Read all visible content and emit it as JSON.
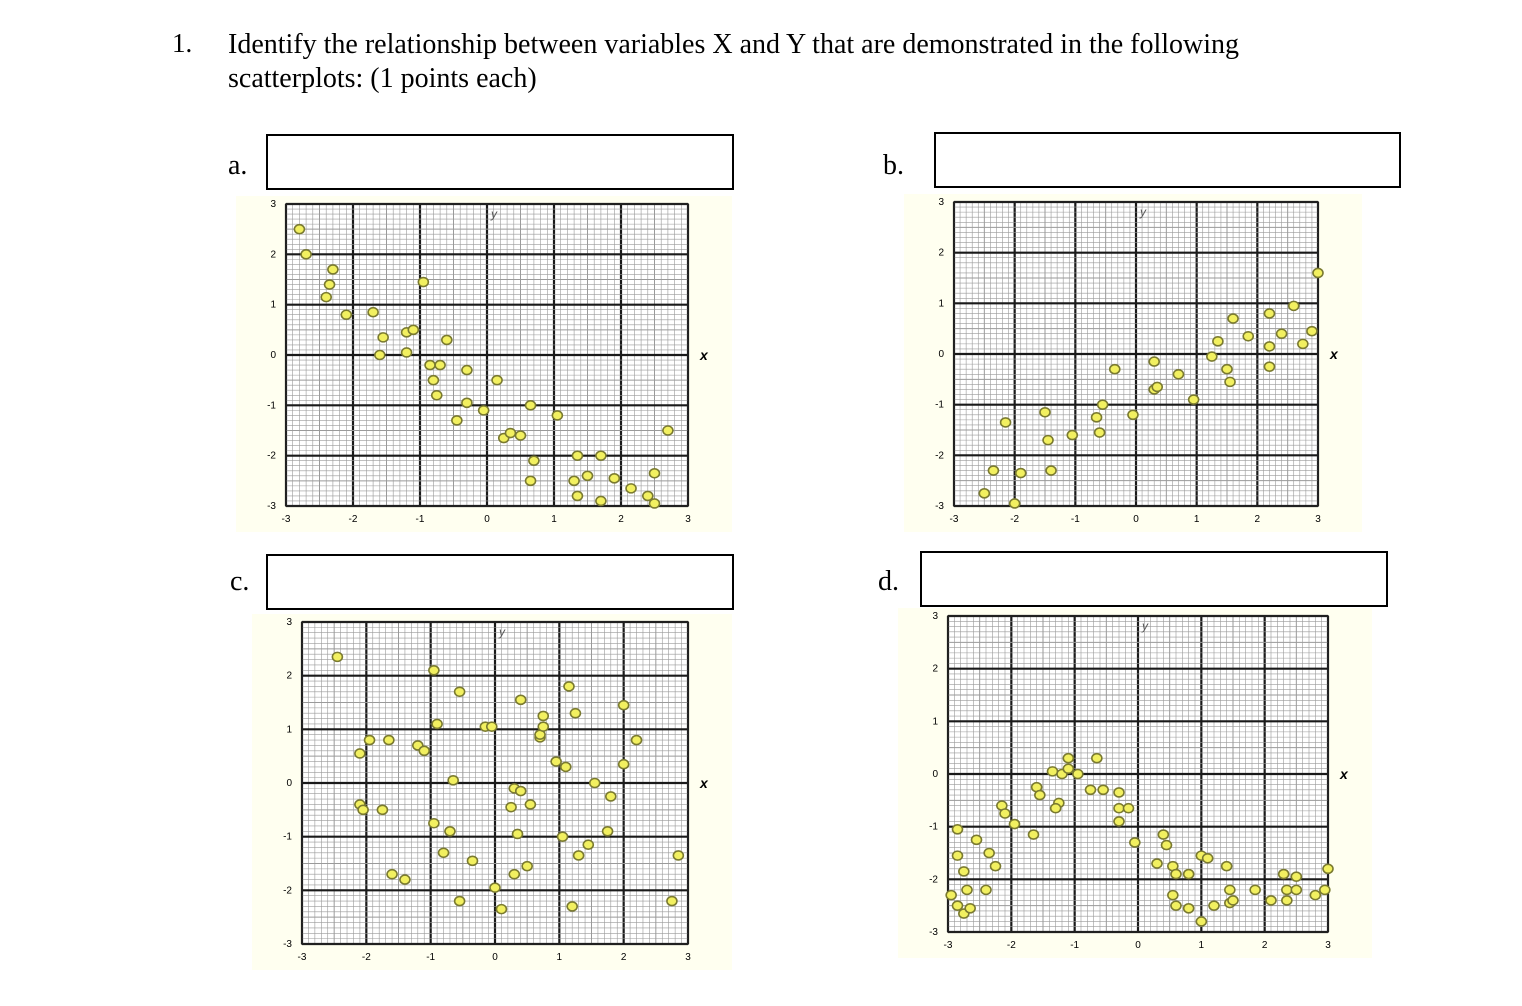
{
  "question": {
    "number": "1.",
    "text": "Identify the relationship between variables X and Y that are demonstrated in the following scatterplots: (1 points each)"
  },
  "plots": [
    {
      "label": "a.",
      "answer": ""
    },
    {
      "label": "b.",
      "answer": ""
    },
    {
      "label": "c.",
      "answer": ""
    },
    {
      "label": "d.",
      "answer": ""
    }
  ],
  "colors": {
    "point_fill": "#f2f060",
    "point_stroke": "#7a7a30",
    "grid_major": "#1a1a1a",
    "grid_minor": "#9a9a9a",
    "plot_bg": "#fffff0"
  },
  "chart_data": [
    {
      "type": "scatter",
      "xlabel": "x",
      "ylabel": "y",
      "xlim": [
        -3,
        3
      ],
      "ylim": [
        -3,
        3
      ],
      "xticks": [
        "-3",
        "-2",
        "-1",
        "0",
        "1",
        "2",
        "3"
      ],
      "yticks": [
        "3",
        "2",
        "1",
        "0",
        "-1",
        "-2",
        "-3"
      ],
      "grid": true,
      "points": [
        [
          -2.8,
          2.5
        ],
        [
          -2.7,
          2.0
        ],
        [
          -2.3,
          1.7
        ],
        [
          -2.35,
          1.4
        ],
        [
          -2.4,
          1.15
        ],
        [
          -2.1,
          0.8
        ],
        [
          -1.7,
          0.85
        ],
        [
          -1.55,
          0.35
        ],
        [
          -1.6,
          0.0
        ],
        [
          -1.2,
          0.45
        ],
        [
          -1.1,
          0.5
        ],
        [
          -0.95,
          1.45
        ],
        [
          -1.2,
          0.05
        ],
        [
          -0.85,
          -0.2
        ],
        [
          -0.7,
          -0.2
        ],
        [
          -0.8,
          -0.5
        ],
        [
          -0.75,
          -0.8
        ],
        [
          -0.6,
          0.3
        ],
        [
          -0.3,
          -0.3
        ],
        [
          -0.3,
          -0.95
        ],
        [
          -0.45,
          -1.3
        ],
        [
          0.15,
          -0.5
        ],
        [
          -0.05,
          -1.1
        ],
        [
          0.25,
          -1.65
        ],
        [
          0.35,
          -1.55
        ],
        [
          0.5,
          -1.6
        ],
        [
          0.65,
          -1.0
        ],
        [
          0.7,
          -2.1
        ],
        [
          0.65,
          -2.5
        ],
        [
          1.05,
          -1.2
        ],
        [
          1.3,
          -2.5
        ],
        [
          1.35,
          -2.8
        ],
        [
          1.5,
          -2.4
        ],
        [
          1.35,
          -2.0
        ],
        [
          1.7,
          -2.9
        ],
        [
          1.7,
          -2.0
        ],
        [
          1.9,
          -2.45
        ],
        [
          2.15,
          -2.65
        ],
        [
          2.4,
          -2.8
        ],
        [
          2.5,
          -2.95
        ],
        [
          2.5,
          -2.35
        ],
        [
          2.7,
          -1.5
        ]
      ]
    },
    {
      "type": "scatter",
      "xlabel": "x",
      "ylabel": "y",
      "xlim": [
        -3,
        3
      ],
      "ylim": [
        -3,
        3
      ],
      "xticks": [
        "-3",
        "-2",
        "-1",
        "0",
        "1",
        "2",
        "3"
      ],
      "yticks": [
        "3",
        "2",
        "1",
        "0",
        "-1",
        "-2",
        "-3"
      ],
      "grid": true,
      "points": [
        [
          -2.5,
          -2.75
        ],
        [
          -2.35,
          -2.3
        ],
        [
          -2.15,
          -1.35
        ],
        [
          -2.0,
          -2.95
        ],
        [
          -1.9,
          -2.35
        ],
        [
          -1.5,
          -1.15
        ],
        [
          -1.45,
          -1.7
        ],
        [
          -1.4,
          -2.3
        ],
        [
          -1.05,
          -1.6
        ],
        [
          -0.65,
          -1.25
        ],
        [
          -0.6,
          -1.55
        ],
        [
          -0.55,
          -1.0
        ],
        [
          -0.35,
          -0.3
        ],
        [
          -0.05,
          -1.2
        ],
        [
          0.3,
          -0.15
        ],
        [
          0.3,
          -0.7
        ],
        [
          0.35,
          -0.65
        ],
        [
          0.7,
          -0.4
        ],
        [
          0.95,
          -0.9
        ],
        [
          1.25,
          -0.05
        ],
        [
          1.35,
          0.25
        ],
        [
          1.5,
          -0.3
        ],
        [
          1.55,
          -0.55
        ],
        [
          1.6,
          0.7
        ],
        [
          1.85,
          0.35
        ],
        [
          2.2,
          0.8
        ],
        [
          2.2,
          0.15
        ],
        [
          2.2,
          -0.25
        ],
        [
          2.4,
          0.4
        ],
        [
          2.6,
          0.95
        ],
        [
          2.75,
          0.2
        ],
        [
          2.9,
          0.45
        ],
        [
          3.0,
          1.6
        ]
      ]
    },
    {
      "type": "scatter",
      "xlabel": "x",
      "ylabel": "y",
      "xlim": [
        -3,
        3
      ],
      "ylim": [
        -3,
        3
      ],
      "xticks": [
        "-3",
        "-2",
        "-1",
        "0",
        "1",
        "2",
        "3"
      ],
      "yticks": [
        "3",
        "2",
        "1",
        "0",
        "-1",
        "-2",
        "-3"
      ],
      "grid": true,
      "points": [
        [
          -2.45,
          2.35
        ],
        [
          -2.1,
          0.55
        ],
        [
          -1.95,
          0.8
        ],
        [
          -1.65,
          0.8
        ],
        [
          -1.2,
          0.7
        ],
        [
          -1.1,
          0.6
        ],
        [
          -0.95,
          2.1
        ],
        [
          -0.9,
          1.1
        ],
        [
          -2.1,
          -0.4
        ],
        [
          -2.05,
          -0.5
        ],
        [
          -1.75,
          -0.5
        ],
        [
          -1.6,
          -1.7
        ],
        [
          -1.4,
          -1.8
        ],
        [
          -0.95,
          -0.75
        ],
        [
          -0.8,
          -1.3
        ],
        [
          -0.7,
          -0.9
        ],
        [
          -0.65,
          0.05
        ],
        [
          -0.55,
          1.7
        ],
        [
          -0.55,
          -2.2
        ],
        [
          -0.35,
          -1.45
        ],
        [
          -0.15,
          1.05
        ],
        [
          -0.05,
          1.05
        ],
        [
          0.0,
          -1.95
        ],
        [
          0.1,
          -2.35
        ],
        [
          0.25,
          -0.45
        ],
        [
          0.3,
          -0.1
        ],
        [
          0.3,
          -1.7
        ],
        [
          0.35,
          -0.95
        ],
        [
          0.4,
          -0.15
        ],
        [
          0.4,
          1.55
        ],
        [
          0.5,
          -1.55
        ],
        [
          0.55,
          -0.4
        ],
        [
          0.7,
          0.85
        ],
        [
          0.7,
          0.9
        ],
        [
          0.75,
          1.05
        ],
        [
          0.75,
          1.25
        ],
        [
          0.95,
          0.4
        ],
        [
          1.05,
          -1.0
        ],
        [
          1.1,
          0.3
        ],
        [
          1.15,
          1.8
        ],
        [
          1.2,
          -2.3
        ],
        [
          1.25,
          1.3
        ],
        [
          1.3,
          -1.35
        ],
        [
          1.45,
          -1.15
        ],
        [
          1.55,
          0.0
        ],
        [
          1.75,
          -0.9
        ],
        [
          1.8,
          -0.25
        ],
        [
          2.0,
          1.45
        ],
        [
          2.0,
          0.35
        ],
        [
          2.2,
          0.8
        ],
        [
          2.75,
          -2.2
        ],
        [
          2.85,
          -1.35
        ]
      ]
    },
    {
      "type": "scatter",
      "xlabel": "x",
      "ylabel": "y",
      "xlim": [
        -3,
        3
      ],
      "ylim": [
        -3,
        3
      ],
      "xticks": [
        "-3",
        "-2",
        "-1",
        "0",
        "1",
        "2",
        "3"
      ],
      "yticks": [
        "3",
        "2",
        "1",
        "0",
        "-1",
        "-2",
        "-3"
      ],
      "grid": true,
      "points": [
        [
          -2.95,
          -2.3
        ],
        [
          -2.85,
          -2.5
        ],
        [
          -2.75,
          -2.65
        ],
        [
          -2.65,
          -2.55
        ],
        [
          -2.7,
          -2.2
        ],
        [
          -2.75,
          -1.85
        ],
        [
          -2.85,
          -1.55
        ],
        [
          -2.85,
          -1.05
        ],
        [
          -2.55,
          -1.25
        ],
        [
          -2.35,
          -1.5
        ],
        [
          -2.4,
          -2.2
        ],
        [
          -2.25,
          -1.75
        ],
        [
          -2.15,
          -0.6
        ],
        [
          -2.1,
          -0.75
        ],
        [
          -1.95,
          -0.95
        ],
        [
          -1.65,
          -1.15
        ],
        [
          -1.6,
          -0.25
        ],
        [
          -1.55,
          -0.4
        ],
        [
          -1.35,
          0.05
        ],
        [
          -1.25,
          -0.55
        ],
        [
          -1.3,
          -0.65
        ],
        [
          -1.2,
          0.0
        ],
        [
          -1.1,
          0.1
        ],
        [
          -1.1,
          0.3
        ],
        [
          -0.95,
          0.0
        ],
        [
          -0.75,
          -0.3
        ],
        [
          -0.65,
          0.3
        ],
        [
          -0.55,
          -0.3
        ],
        [
          -0.3,
          -0.35
        ],
        [
          -0.3,
          -0.65
        ],
        [
          -0.3,
          -0.9
        ],
        [
          -0.15,
          -0.65
        ],
        [
          -0.05,
          -1.3
        ],
        [
          0.4,
          -1.15
        ],
        [
          0.45,
          -1.35
        ],
        [
          0.3,
          -1.7
        ],
        [
          0.55,
          -1.75
        ],
        [
          0.6,
          -1.9
        ],
        [
          0.8,
          -1.9
        ],
        [
          0.55,
          -2.3
        ],
        [
          0.6,
          -2.5
        ],
        [
          0.8,
          -2.55
        ],
        [
          1.0,
          -1.55
        ],
        [
          1.0,
          -2.8
        ],
        [
          1.1,
          -1.6
        ],
        [
          1.2,
          -2.5
        ],
        [
          1.4,
          -1.75
        ],
        [
          1.45,
          -2.2
        ],
        [
          1.45,
          -2.45
        ],
        [
          1.5,
          -2.4
        ],
        [
          1.85,
          -2.2
        ],
        [
          2.1,
          -2.4
        ],
        [
          2.3,
          -1.9
        ],
        [
          2.35,
          -2.2
        ],
        [
          2.35,
          -2.4
        ],
        [
          2.5,
          -1.95
        ],
        [
          2.5,
          -2.2
        ],
        [
          2.8,
          -2.3
        ],
        [
          2.95,
          -2.2
        ],
        [
          3.0,
          -1.8
        ]
      ]
    }
  ]
}
